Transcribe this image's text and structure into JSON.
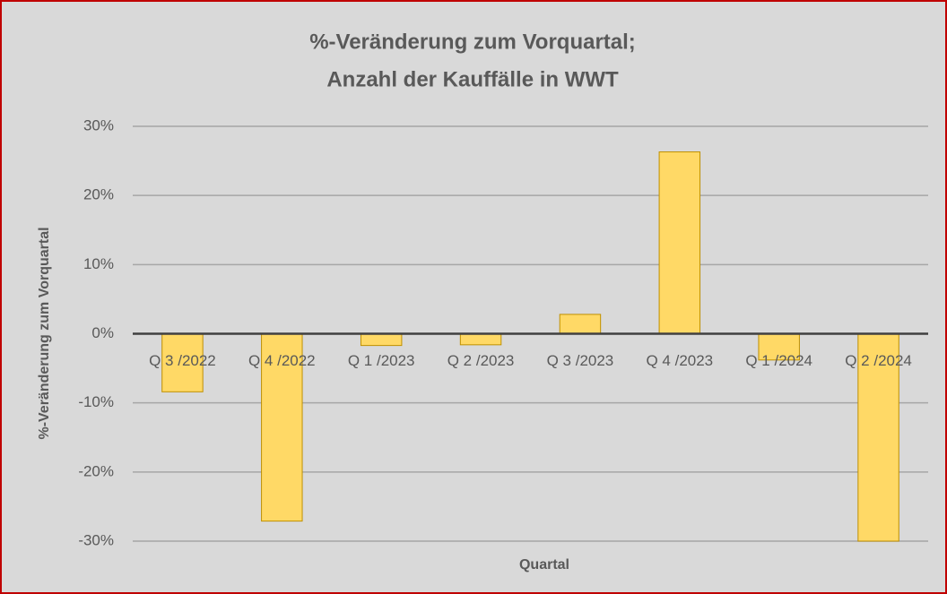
{
  "chart_data": {
    "type": "bar",
    "title": [
      "%-Veränderung zum Vorquartal;",
      "Anzahl der Kauffälle in WWT"
    ],
    "x_label": "Quartal",
    "y_label": "%-Veränderung zum Vorquartal",
    "categories": [
      "Q 3 /2022",
      "Q 4 /2022",
      "Q 1 /2023",
      "Q 2 /2023",
      "Q 3 /2023",
      "Q 4 /2023",
      "Q 1 /2024",
      "Q 2 /2024"
    ],
    "values": [
      -8.4,
      -27.1,
      -1.7,
      -1.6,
      2.8,
      26.3,
      -3.8,
      -30
    ],
    "color": "#ffd966",
    "ylim": [
      -30,
      30
    ],
    "yticks": [
      {
        "value": -30,
        "label": "-30%"
      },
      {
        "value": -20,
        "label": "-20%"
      },
      {
        "value": -10,
        "label": "-10%"
      },
      {
        "value": 0,
        "label": "0%"
      },
      {
        "value": 10,
        "label": "10%"
      },
      {
        "value": 20,
        "label": "20%"
      },
      {
        "value": 30,
        "label": "30%"
      }
    ],
    "grid": true
  }
}
